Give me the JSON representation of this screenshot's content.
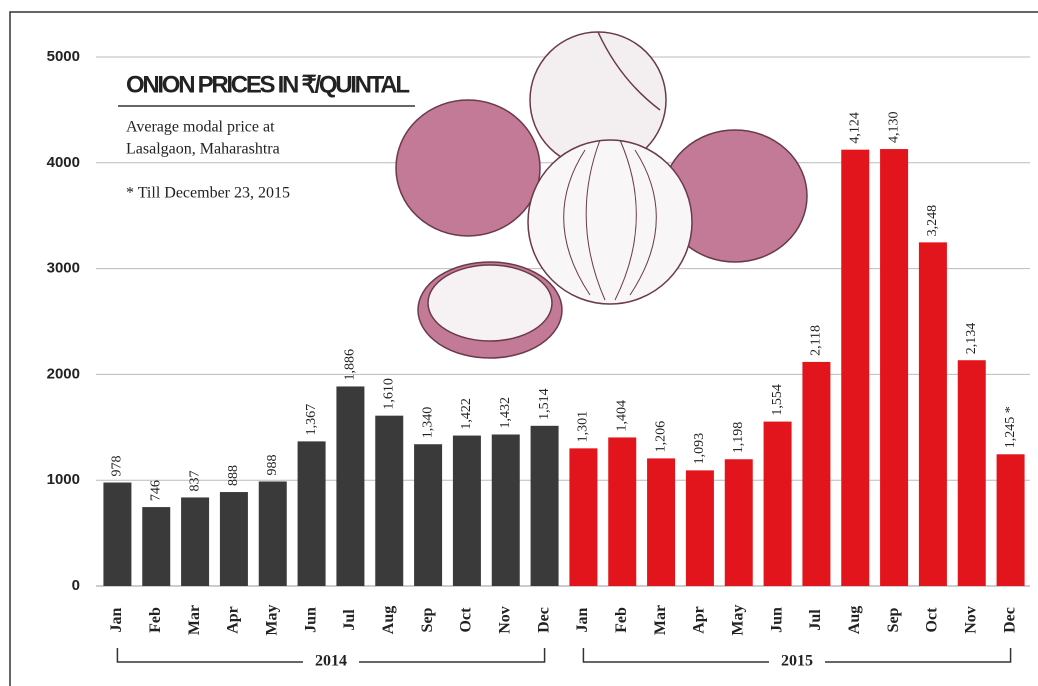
{
  "chart_data": {
    "type": "bar",
    "title": "ONION PRICES IN ₹/QUINTAL",
    "subtitle": [
      "Average modal price at",
      "Lasalgaon, Maharashtra"
    ],
    "note": "* Till December 23, 2015",
    "categories": [
      "Jan",
      "Feb",
      "Mar",
      "Apr",
      "May",
      "Jun",
      "Jul",
      "Aug",
      "Sep",
      "Oct",
      "Nov",
      "Dec",
      "Jan",
      "Feb",
      "Mar",
      "Apr",
      "May",
      "Jun",
      "Jul",
      "Aug",
      "Sep",
      "Oct",
      "Nov",
      "Dec"
    ],
    "series": [
      {
        "name": "2014",
        "color": "#3a3a3a",
        "values": [
          978,
          746,
          837,
          888,
          988,
          1367,
          1886,
          1610,
          1340,
          1422,
          1432,
          1514,
          null,
          null,
          null,
          null,
          null,
          null,
          null,
          null,
          null,
          null,
          null,
          null
        ],
        "value_labels": [
          "978",
          "746",
          "837",
          "888",
          "988",
          "1,367",
          "1,886",
          "1,610",
          "1,340",
          "1,422",
          "1,432",
          "1,514",
          null,
          null,
          null,
          null,
          null,
          null,
          null,
          null,
          null,
          null,
          null,
          null
        ]
      },
      {
        "name": "2015",
        "color": "#e3151c",
        "values": [
          null,
          null,
          null,
          null,
          null,
          null,
          null,
          null,
          null,
          null,
          null,
          null,
          1301,
          1404,
          1206,
          1093,
          1198,
          1554,
          2118,
          4124,
          4130,
          3248,
          2134,
          1245
        ],
        "value_labels": [
          null,
          null,
          null,
          null,
          null,
          null,
          null,
          null,
          null,
          null,
          null,
          null,
          "1,301",
          "1,404",
          "1,206",
          "1,093",
          "1,198",
          "1,554",
          "2,118",
          "4,124",
          "4,130",
          "3,248",
          "2,134",
          "1,245 *"
        ]
      }
    ],
    "ylim": [
      0,
      5000
    ],
    "yticks": [
      0,
      1000,
      2000,
      3000,
      4000,
      5000
    ],
    "grid": true
  }
}
